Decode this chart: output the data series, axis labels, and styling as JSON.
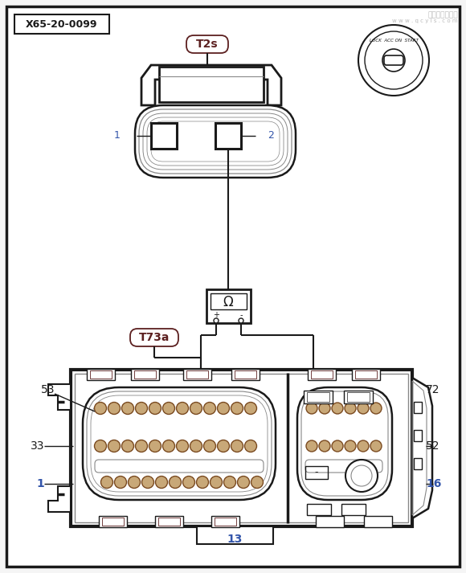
{
  "bg_color": "#f5f5f5",
  "white": "#ffffff",
  "dark": "#1a1a1a",
  "brown": "#5c2020",
  "blue": "#3355aa",
  "pin_fill": "#c8a878",
  "pin_edge": "#7a4a20",
  "gray": "#888888",
  "label_X65": "X65-20-0099",
  "label_T2s": "T2s",
  "label_T73a": "T73a",
  "wm1": "汽车维修技术网",
  "wm2": "w w w . q c y i s . c o m",
  "lbl_1": "1",
  "lbl_2": "2",
  "lbl_53": "53",
  "lbl_33": "33",
  "lbl_1b": "1",
  "lbl_72": "72",
  "lbl_52": "52",
  "lbl_16": "16",
  "lbl_13": "13"
}
